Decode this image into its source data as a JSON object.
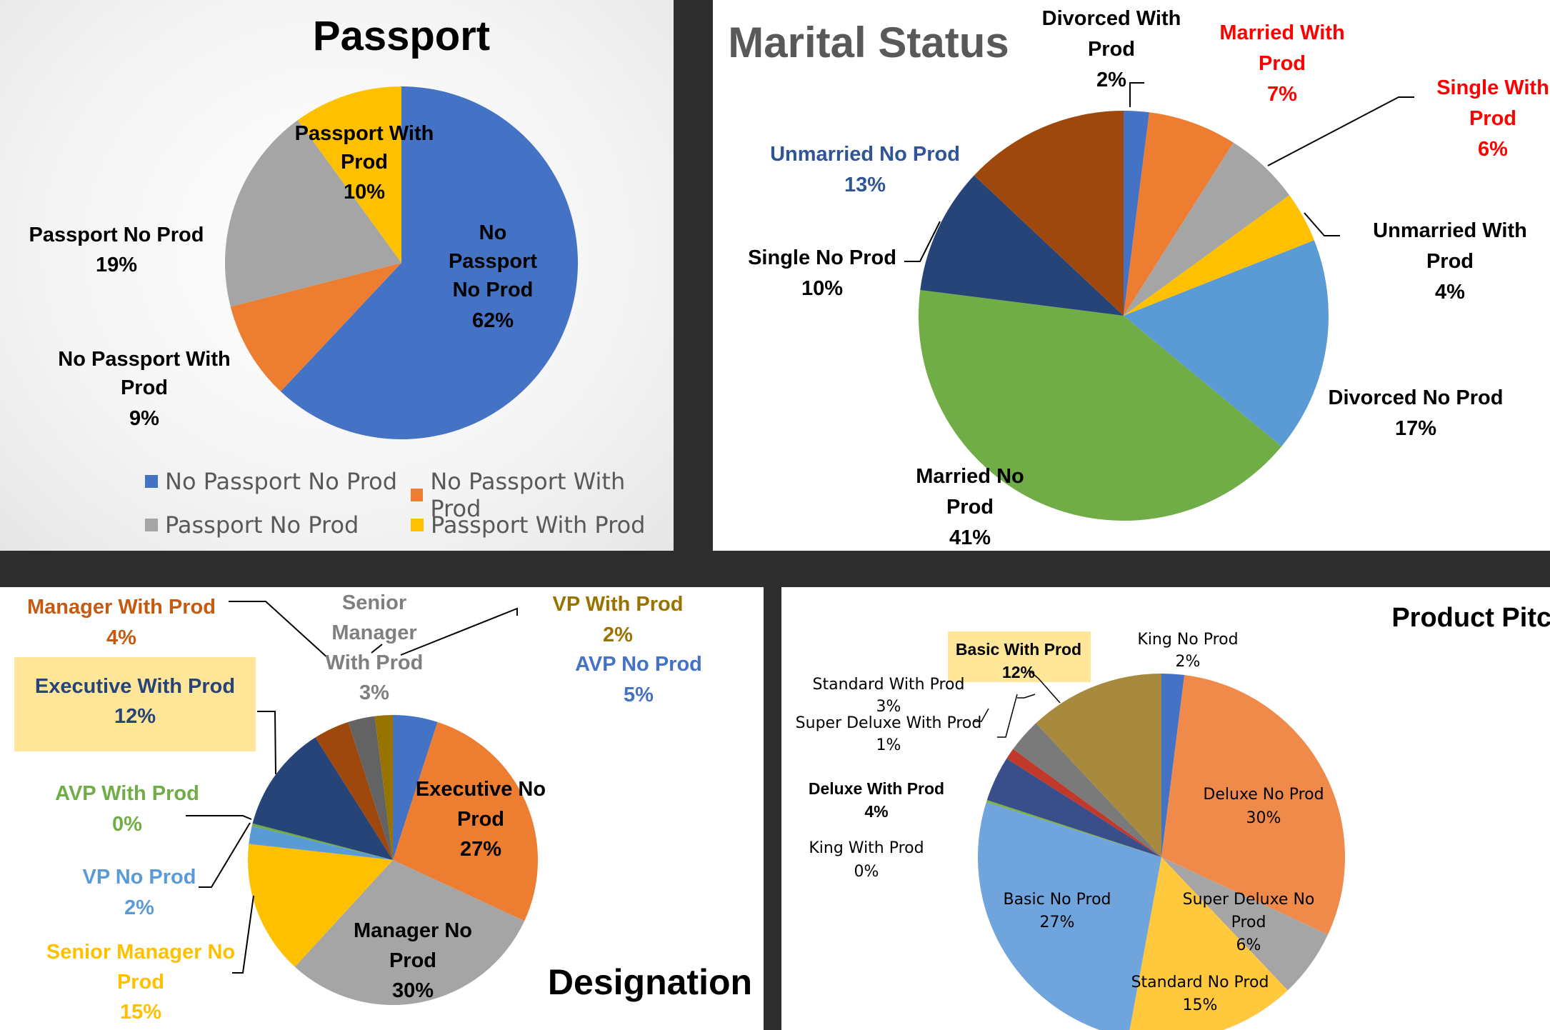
{
  "chart_data": [
    {
      "type": "pie",
      "title": "Passport",
      "categories": [
        "No Passport No Prod",
        "No Passport With Prod",
        "Passport No Prod",
        "Passport With Prod"
      ],
      "values": [
        62,
        9,
        19,
        10
      ],
      "labels": [
        "No Passport No Prod",
        "No Passport With Prod",
        "Passport No Prod",
        "Passport With Prod"
      ],
      "percent_labels": [
        "62%",
        "9%",
        "19%",
        "10%"
      ],
      "colors": [
        "#4472C4",
        "#ED7D31",
        "#A5A5A5",
        "#FFC000"
      ],
      "legend": [
        "No Passport No Prod",
        "No Passport With Prod",
        "Passport No Prod",
        "Passport With Prod"
      ],
      "legend_position": "bottom"
    },
    {
      "type": "pie",
      "title": "Marital Status",
      "categories": [
        "Divorced With Prod",
        "Married With Prod",
        "Single With Prod",
        "Unmarried With Prod",
        "Divorced No Prod",
        "Married No Prod",
        "Single No Prod",
        "Unmarried No Prod"
      ],
      "values": [
        2,
        7,
        6,
        4,
        17,
        41,
        10,
        13
      ],
      "percent_labels": [
        "2%",
        "7%",
        "6%",
        "4%",
        "17%",
        "41%",
        "10%",
        "13%"
      ],
      "colors": [
        "#4472C4",
        "#ED7D31",
        "#A5A5A5",
        "#FFC000",
        "#5B9BD5",
        "#70AD47",
        "#264478",
        "#9E480E"
      ],
      "label_colors": [
        "#000000",
        "#FF0000",
        "#FF0000",
        "#000000",
        "#000000",
        "#000000",
        "#000000",
        "#2F5597"
      ]
    },
    {
      "type": "pie",
      "title": "Designation",
      "categories": [
        "AVP No Prod",
        "Executive No Prod",
        "Manager No Prod",
        "Senior Manager No Prod",
        "VP No Prod",
        "AVP With Prod",
        "Executive With Prod",
        "Manager With Prod",
        "Senior Manager With Prod",
        "VP With Prod"
      ],
      "values": [
        5,
        27,
        30,
        15,
        2,
        0.3,
        12,
        4,
        3,
        2
      ],
      "percent_labels": [
        "5%",
        "27%",
        "30%",
        "15%",
        "2%",
        "0%",
        "12%",
        "4%",
        "3%",
        "2%"
      ],
      "colors": [
        "#4472C4",
        "#ED7D31",
        "#A5A5A5",
        "#FFC000",
        "#5B9BD5",
        "#70AD47",
        "#264478",
        "#9E480E",
        "#636363",
        "#997300"
      ],
      "label_colors": [
        "#4472C4",
        "#000000",
        "#000000",
        "#FFC000",
        "#5B9BD5",
        "#70AD47",
        "#264478",
        "#C55A11",
        "#7F7F7F",
        "#997300"
      ]
    },
    {
      "type": "pie",
      "title": "Product Pitched",
      "categories": [
        "King No Prod",
        "Deluxe No Prod",
        "Super Deluxe No Prod",
        "Standard No Prod",
        "Basic No Prod",
        "King With Prod",
        "Deluxe With Prod",
        "Super Deluxe With Prod",
        "Standard With Prod",
        "Basic With Prod"
      ],
      "values": [
        2,
        30,
        6,
        15,
        27,
        0.2,
        4,
        1,
        3,
        12
      ],
      "percent_labels": [
        "2%",
        "30%",
        "6%",
        "15%",
        "27%",
        "0%",
        "4%",
        "1%",
        "3%",
        "12%"
      ],
      "colors": [
        "#4472C4",
        "#F08A4B",
        "#A5A5A5",
        "#FFC83D",
        "#6FA4DC",
        "#7CB342",
        "#3A4F8A",
        "#C0392B",
        "#7A7A7A",
        "#A88A3E"
      ]
    }
  ]
}
